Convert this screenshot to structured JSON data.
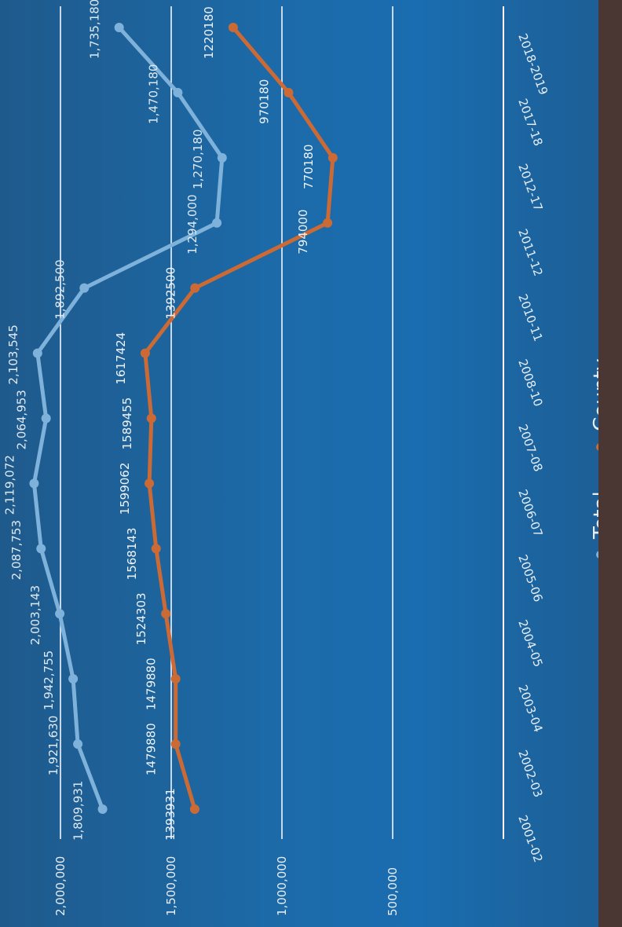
{
  "chart_data": {
    "type": "line",
    "categories": [
      "2001-02",
      "2002-03",
      "2003-04",
      "2004-05",
      "2005-06",
      "2006-07",
      "2007-08",
      "2008-10",
      "2010-11",
      "2011-12",
      "2012-17",
      "2017-18",
      "2018-2019"
    ],
    "series": [
      {
        "name": "Total",
        "color": "#7fb2da",
        "values": [
          1809931,
          1921630,
          1942755,
          2003143,
          2087753,
          2119072,
          2064953,
          2103545,
          1892500,
          1294000,
          1270180,
          1470180,
          1735180
        ],
        "labels": [
          "1,809,931",
          "1,921,630",
          "1,942,755",
          "2,003,143",
          "2,087,753",
          "2,119,072",
          "2,064,953",
          "2,103,545",
          "1,892,500",
          "1,294,000",
          "1,270,180",
          "1,470,180",
          "1,735,180"
        ]
      },
      {
        "name": "County",
        "color": "#cc6a36",
        "values": [
          1393931,
          1479880,
          1479880,
          1524303,
          1568143,
          1599062,
          1589455,
          1617424,
          1392500,
          794000,
          770180,
          970180,
          1220180
        ],
        "labels": [
          "1393931",
          "1479880",
          "1479880",
          "1524303",
          "1568143",
          "1599062",
          "1589455",
          "1617424",
          "1392500",
          "794000",
          "770180",
          "970180",
          "1220180"
        ]
      }
    ],
    "y_ticks": [
      "2,000,000",
      "1,500,000",
      "1,000,000",
      "500,000"
    ],
    "y_tick_values": [
      2000000,
      1500000,
      1000000,
      500000
    ],
    "ylim": [
      0,
      2000000
    ],
    "grid": true,
    "legend_position": "bottom"
  }
}
